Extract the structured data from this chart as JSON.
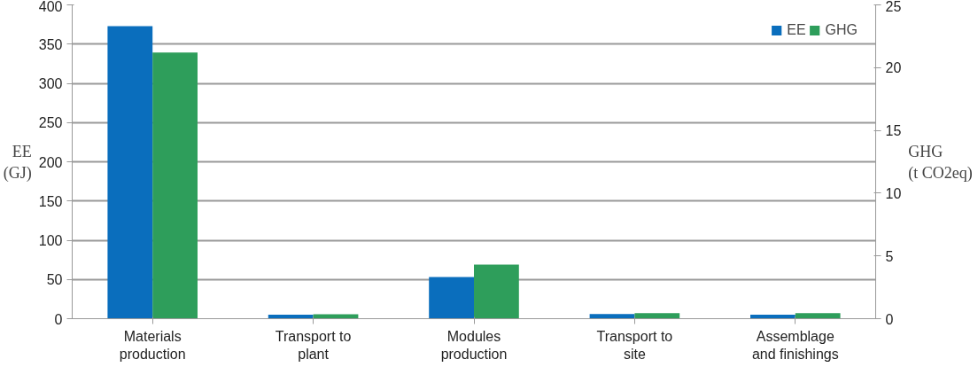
{
  "chart_data": {
    "type": "bar",
    "categories": [
      "Materials\nproduction",
      "Transport to\nplant",
      "Modules\nproduction",
      "Transport to\nsite",
      "Assemblage\nand finishings"
    ],
    "series": [
      {
        "name": "EE",
        "color": "#0a6ebd",
        "values": [
          373,
          5,
          53,
          6,
          5
        ]
      },
      {
        "name": "GHG",
        "color": "#2e9e5b",
        "axis": "y2",
        "values": [
          21.2,
          0.35,
          4.3,
          0.45,
          0.45
        ]
      }
    ],
    "ylabel": "EE\n(GJ)",
    "y2label": "GHG\n(t CO2eq)",
    "ylim": [
      0,
      400
    ],
    "yticks": [
      0,
      50,
      100,
      150,
      200,
      250,
      300,
      350,
      400
    ],
    "y2lim": [
      0,
      25
    ],
    "y2ticks": [
      0,
      5,
      10,
      15,
      20,
      25
    ],
    "grid": "y",
    "legend": "top right"
  }
}
